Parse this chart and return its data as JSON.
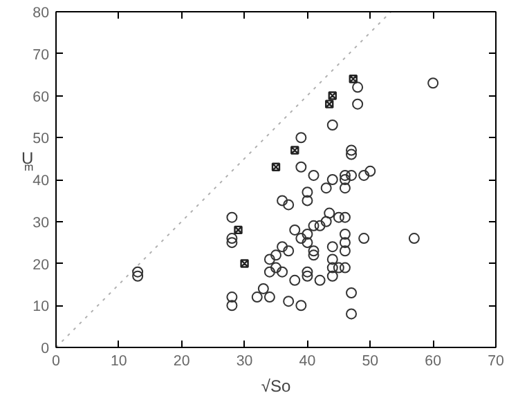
{
  "chart_data": {
    "type": "scatter",
    "xlabel": "√So",
    "ylabel": "U$_{m}$",
    "xlim": [
      0,
      70
    ],
    "ylim": [
      0,
      80
    ],
    "xticks": [
      0,
      10,
      20,
      30,
      40,
      50,
      60,
      70
    ],
    "yticks": [
      0,
      10,
      20,
      30,
      40,
      50,
      60,
      70,
      80
    ],
    "grid": false,
    "series": [
      {
        "type": "line",
        "color": "#b0b0b0",
        "line_style": "dotted",
        "x": [
          0,
          53.3
        ],
        "values": [
          0,
          80
        ]
      },
      {
        "color": "#333333",
        "marker": "circle",
        "x": [
          13,
          13,
          28,
          28,
          28,
          28,
          28,
          32,
          33,
          34,
          34,
          34,
          35,
          35,
          36,
          36,
          36,
          37,
          37,
          37,
          38,
          38,
          39,
          39,
          39,
          39,
          40,
          40,
          40,
          40,
          40,
          40,
          41,
          41,
          41,
          41,
          42,
          42,
          43,
          43,
          43.5,
          44,
          44,
          44,
          44,
          44,
          44,
          45,
          45,
          46,
          46,
          46,
          46,
          46,
          46,
          46,
          46,
          47,
          47,
          47,
          47,
          47,
          48,
          48,
          49,
          49,
          50,
          57,
          60
        ],
        "values": [
          17,
          18,
          31,
          26,
          25,
          12,
          10,
          12,
          14,
          12,
          18,
          21,
          22,
          19,
          24,
          18,
          35,
          34,
          23,
          11,
          28,
          16,
          26,
          50,
          43,
          10,
          37,
          35,
          27,
          25,
          18,
          17,
          41,
          29,
          23,
          22,
          29,
          16,
          38,
          30,
          32,
          53,
          40,
          24,
          21,
          19,
          17,
          31,
          19,
          41,
          40,
          38,
          31,
          27,
          25,
          23,
          19,
          47,
          46,
          41,
          13,
          8,
          62,
          58,
          41,
          26,
          42,
          26,
          63
        ]
      },
      {
        "color": "#222222",
        "marker": "cross",
        "x": [
          47.3,
          44,
          43.5,
          38,
          35,
          29,
          30
        ],
        "values": [
          64,
          60,
          58,
          47,
          43,
          28,
          20
        ]
      }
    ]
  }
}
